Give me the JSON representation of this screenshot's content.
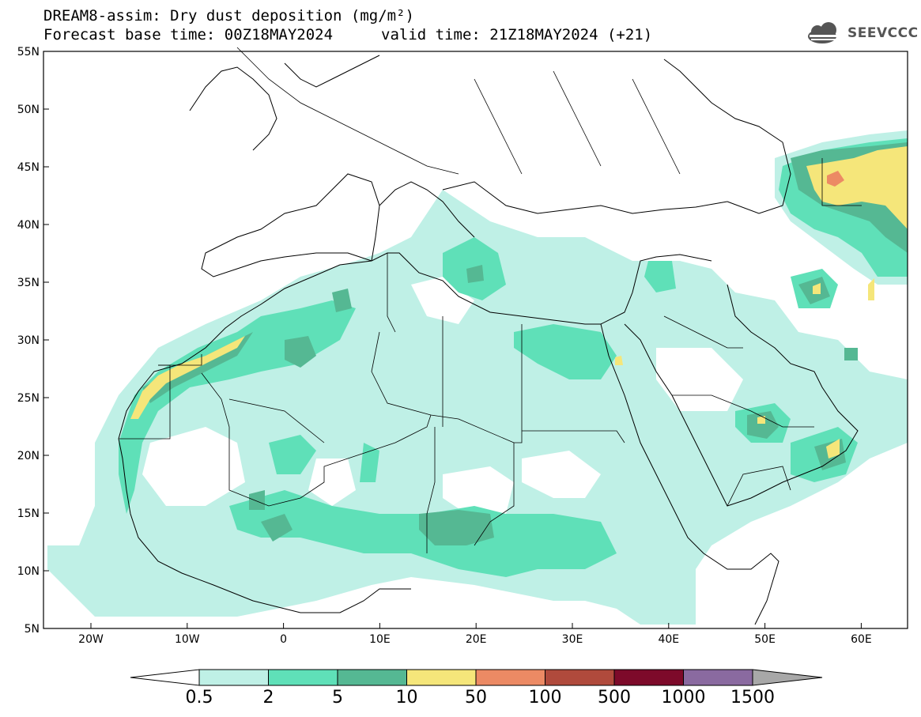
{
  "header": {
    "title_line1": "DREAM8-assim: Dry dust deposition (mg/m²)",
    "title_line2": "Forecast base time: 00Z18MAY2024",
    "valid_time": "valid time: 21Z18MAY2024 (+21)",
    "logo_text": "SEEVCCC"
  },
  "map": {
    "lat_ticks": [
      "55N",
      "50N",
      "45N",
      "40N",
      "35N",
      "30N",
      "25N",
      "20N",
      "15N",
      "10N",
      "5N"
    ],
    "lon_ticks": [
      "20W",
      "10W",
      "0",
      "10E",
      "20E",
      "30E",
      "40E",
      "50E",
      "60E"
    ],
    "ocean_color": "#ffffff",
    "border_color": "#000000"
  },
  "colorbar": {
    "labels": [
      "0.5",
      "2",
      "5",
      "10",
      "50",
      "100",
      "500",
      "1000",
      "1500"
    ],
    "colors": [
      "#bff0e6",
      "#5fe0b8",
      "#55b893",
      "#f5e67a",
      "#ec8a64",
      "#b04a3c",
      "#7d0a2a",
      "#8a6aa0",
      "#a8a8a8"
    ]
  }
}
